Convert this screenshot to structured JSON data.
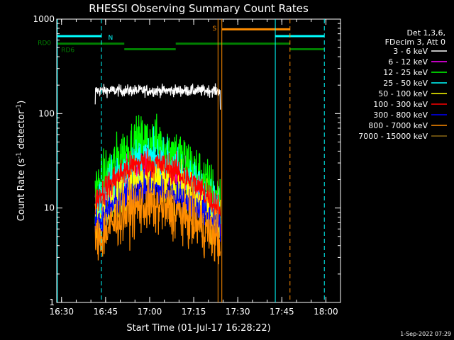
{
  "chart_data": {
    "type": "line",
    "title": "RHESSI Observing Summary Count Rates",
    "xlabel": "Start Time (01-Jul-17 16:28:22)",
    "ylabel_main": "Count Rate (s",
    "ylabel_exp1": "-1",
    "ylabel_mid": " detector",
    "ylabel_exp2": "-1",
    "ylabel_end": ")",
    "timestamp": "1-Sep-2022 07:29",
    "x_unit": "minutes after 16:28:22",
    "xlim": [
      0,
      96.6
    ],
    "ylim": [
      1,
      1000
    ],
    "y_scale": "log",
    "x_ticks": [
      {
        "value": 1.63,
        "label": "16:30"
      },
      {
        "value": 16.63,
        "label": "16:45"
      },
      {
        "value": 31.63,
        "label": "17:00"
      },
      {
        "value": 46.63,
        "label": "17:15"
      },
      {
        "value": 61.63,
        "label": "17:30"
      },
      {
        "value": 76.63,
        "label": "17:45"
      },
      {
        "value": 91.63,
        "label": "18:00"
      }
    ],
    "y_ticks": [
      {
        "value": 1,
        "label": "1"
      },
      {
        "value": 10,
        "label": "10"
      },
      {
        "value": 100,
        "label": "100"
      },
      {
        "value": 1000,
        "label": "1000"
      }
    ],
    "legend": {
      "position": "top-right",
      "header": [
        "Det 1,3,6,",
        "FDecim 3, Att 0"
      ],
      "entries": [
        {
          "label": "3 - 6 keV",
          "color": "#000000"
        },
        {
          "label": "6 - 12 keV",
          "color": "#ff00ff"
        },
        {
          "label": "12 - 25 keV",
          "color": "#00ff00"
        },
        {
          "label": "25 - 50 keV",
          "color": "#00ffff"
        },
        {
          "label": "50 - 100 keV",
          "color": "#ffff00"
        },
        {
          "label": "100 - 300 keV",
          "color": "#ff0000"
        },
        {
          "label": "300 - 800 keV",
          "color": "#0000ff"
        },
        {
          "label": "800 - 7000 keV",
          "color": "#ff8c00"
        },
        {
          "label": "7000 - 15000 keV",
          "color": "#8b6914"
        }
      ]
    },
    "data_window": {
      "start": 13.1,
      "end": 55.7,
      "peak": 30.5
    },
    "series": [
      {
        "name": "3 - 6 keV",
        "color": "#000000",
        "start": 125,
        "peak": 175,
        "end": 170,
        "noise": 0.03,
        "flat": true
      },
      {
        "name": "6 - 12 keV",
        "color": "#ff00ff",
        "start": 9,
        "peak": 25,
        "end": 9,
        "noise": 0.12
      },
      {
        "name": "12 - 25 keV",
        "color": "#00ff00",
        "start": 15,
        "peak": 50,
        "end": 12,
        "noise": 0.14
      },
      {
        "name": "25 - 50 keV",
        "color": "#00ffff",
        "start": 10,
        "peak": 33,
        "end": 9,
        "noise": 0.12
      },
      {
        "name": "50 - 100 keV",
        "color": "#ffff00",
        "start": 7,
        "peak": 20,
        "end": 7,
        "noise": 0.12
      },
      {
        "name": "100 - 300 keV",
        "color": "#ff0000",
        "start": 12,
        "peak": 30,
        "end": 10,
        "noise": 0.08
      },
      {
        "name": "300 - 800 keV",
        "color": "#0000ff",
        "start": 6.5,
        "peak": 16,
        "end": 6.5,
        "noise": 0.08
      },
      {
        "name": "800 - 7000 keV",
        "color": "#ff8c00",
        "start": 4.3,
        "peak": 10.5,
        "end": 4.5,
        "noise": 0.14
      }
    ],
    "vertical_lines": [
      {
        "x": 0.2,
        "color": "#00ffff",
        "style": "solid"
      },
      {
        "x": 15.2,
        "color": "#00ffff",
        "style": "dashed"
      },
      {
        "x": 54.9,
        "color": "#ff8c00",
        "style": "solid"
      },
      {
        "x": 56.2,
        "color": "#ff8c00",
        "style": "solid"
      },
      {
        "x": 74.4,
        "color": "#00ffff",
        "style": "solid"
      },
      {
        "x": 79.4,
        "color": "#ff8c00",
        "style": "dashed"
      },
      {
        "x": 91.1,
        "color": "#00ffff",
        "style": "dashed"
      }
    ],
    "flag_bars": [
      {
        "flag": "N",
        "color": "#00ffff",
        "y": 660,
        "x1": 0.2,
        "x2": 15.2
      },
      {
        "flag": "N",
        "color": "#00ffff",
        "y": 660,
        "x1": 74.4,
        "x2": 91.1
      },
      {
        "flag": "S",
        "color": "#ff8c00",
        "y": 780,
        "x1": 56.2,
        "x2": 79.4
      },
      {
        "flag": "RD",
        "color": "#008000",
        "y": 550,
        "x1": 0.2,
        "x2": 23.0
      },
      {
        "flag": "RD",
        "color": "#008000",
        "y": 480,
        "x1": 23.0,
        "x2": 40.5
      },
      {
        "flag": "RD",
        "color": "#008000",
        "y": 550,
        "x1": 40.5,
        "x2": 79.4
      },
      {
        "flag": "RD",
        "color": "#008000",
        "y": 480,
        "x1": 79.4,
        "x2": 91.1
      }
    ],
    "flag_labels": [
      {
        "text": "N",
        "color": "#00ffff",
        "x": 17.5,
        "y": 640
      },
      {
        "text": "S",
        "color": "#ff8c00",
        "x": 53.0,
        "y": 800
      },
      {
        "text": "RD0",
        "color": "#008000",
        "x": -6.5,
        "y": 560
      },
      {
        "text": "RD6",
        "color": "#008000",
        "x": 1.5,
        "y": 470
      }
    ]
  }
}
